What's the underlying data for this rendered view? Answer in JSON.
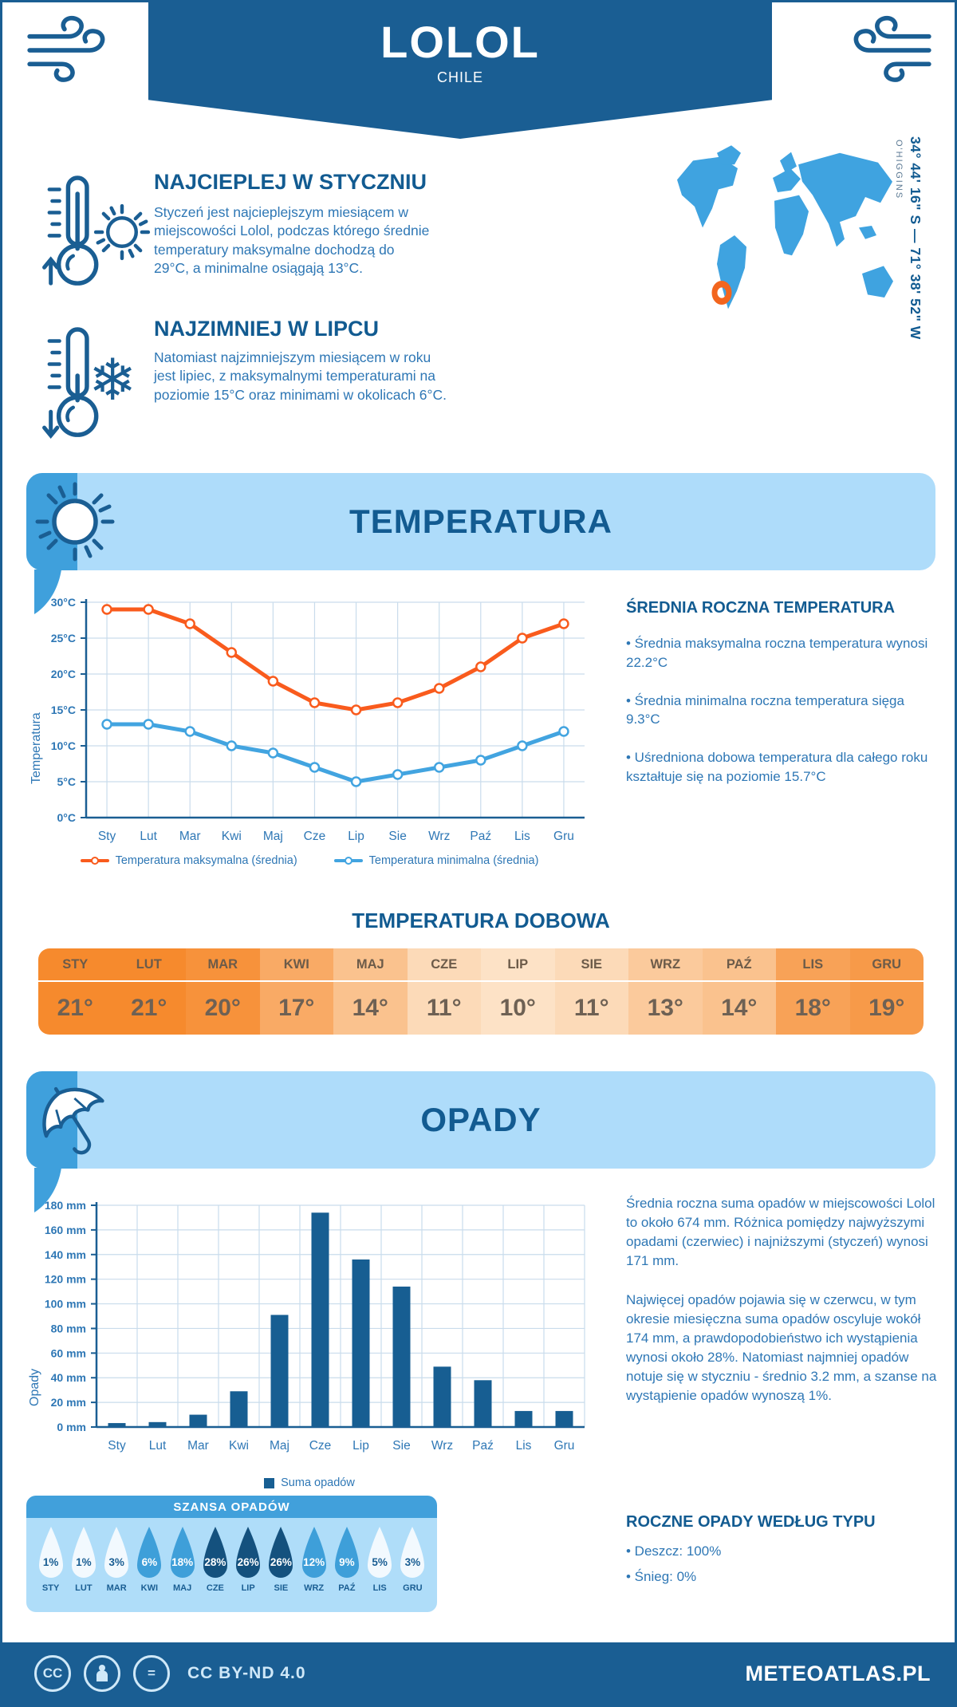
{
  "header": {
    "title": "LOLOL",
    "country": "CHILE"
  },
  "location": {
    "coordinates": "34° 44' 16\" S — 71° 38' 52\" W",
    "region": "O'HIGGINS"
  },
  "warm": {
    "heading": "NAJCIEPLEJ W STYCZNIU",
    "text": "Styczeń jest najcieplejszym miesiącem w miejscowości Lolol, podczas którego średnie temperatury maksymalne dochodzą do 29°C, a minimalne osiągają 13°C."
  },
  "cold": {
    "heading": "NAJZIMNIEJ W LIPCU",
    "text": "Natomiast najzimniejszym miesiącem w roku jest lipiec, z maksymalnymi temperaturami na poziomie 15°C oraz minimami w okolicach 6°C."
  },
  "temperature_section": {
    "title": "TEMPERATURA",
    "right_panel": {
      "heading": "ŚREDNIA ROCZNA TEMPERATURA",
      "bullets": [
        "• Średnia maksymalna roczna temperatura wynosi 22.2°C",
        "• Średnia minimalna roczna temperatura sięga 9.3°C",
        "• Uśredniona dobowa temperatura dla całego roku kształtuje się na poziomie 15.7°C"
      ]
    },
    "daily": {
      "title": "TEMPERATURA DOBOWA",
      "months": [
        "STY",
        "LUT",
        "MAR",
        "KWI",
        "MAJ",
        "CZE",
        "LIP",
        "SIE",
        "WRZ",
        "PAŹ",
        "LIS",
        "GRU"
      ],
      "values": [
        "21°",
        "21°",
        "20°",
        "17°",
        "14°",
        "11°",
        "10°",
        "11°",
        "13°",
        "14°",
        "18°",
        "19°"
      ],
      "colors": [
        "#F68A2D",
        "#F68A2D",
        "#F7923B",
        "#F9AA65",
        "#FAC28E",
        "#FCDAB8",
        "#FDE2C6",
        "#FCDAB8",
        "#FBCA9C",
        "#FAC28E",
        "#F8A257",
        "#F79A49"
      ]
    }
  },
  "precip_section": {
    "title": "OPADY",
    "paragraphs": [
      "Średnia roczna suma opadów w miejscowości Lolol to około 674 mm. Różnica pomiędzy najwyższymi opadami (czerwiec) i najniższymi (styczeń) wynosi 171 mm.",
      "Najwięcej opadów pojawia się w czerwcu, w tym okresie miesięczna suma opadów oscyluje wokół 174 mm, a prawdopodobieństwo ich wystąpienia wynosi około 28%. Natomiast najmniej opadów notuje się w styczniu - średnio 3.2 mm, a szanse na wystąpienie opadów wynoszą 1%."
    ],
    "type_panel": {
      "heading": "ROCZNE OPADY WEDŁUG TYPU",
      "bullets": [
        "• Deszcz: 100%",
        "• Śnieg: 0%"
      ]
    },
    "chance": {
      "title": "SZANSA OPADÓW",
      "months": [
        "STY",
        "LUT",
        "MAR",
        "KWI",
        "MAJ",
        "CZE",
        "LIP",
        "SIE",
        "WRZ",
        "PAŹ",
        "LIS",
        "GRU"
      ],
      "values": [
        "1%",
        "1%",
        "3%",
        "6%",
        "18%",
        "28%",
        "26%",
        "26%",
        "12%",
        "9%",
        "5%",
        "3%"
      ],
      "levels": [
        "light",
        "light",
        "light",
        "mid",
        "mid",
        "dark",
        "dark",
        "dark",
        "mid",
        "mid",
        "light",
        "light"
      ],
      "level_colors": {
        "light": "#F2F9FE",
        "mid": "#3E9FD9",
        "dark": "#14517E"
      },
      "level_text_colors": {
        "light": "#1A5E93",
        "mid": "#FFFFFF",
        "dark": "#FFFFFF"
      }
    }
  },
  "footer": {
    "license": "CC BY-ND 4.0",
    "brand": "METEOATLAS.PL"
  },
  "colors": {
    "primary_dark_blue": "#1A5E93",
    "banner_light_blue": "#AEDCFA",
    "banner_accent_blue": "#3FA0DC",
    "map_blue": "#3FA3E0",
    "marker_orange": "#F2651E",
    "heading_blue": "#125B91",
    "body_text_blue": "#2E77B5"
  },
  "chart_data": [
    {
      "type": "line",
      "categories": [
        "Sty",
        "Lut",
        "Mar",
        "Kwi",
        "Maj",
        "Cze",
        "Lip",
        "Sie",
        "Wrz",
        "Paź",
        "Lis",
        "Gru"
      ],
      "series": [
        {
          "name": "Temperatura maksymalna (średnia)",
          "color": "#F95B1D",
          "values": [
            29,
            29,
            27,
            23,
            19,
            16,
            15,
            16,
            18,
            21,
            25,
            27
          ]
        },
        {
          "name": "Temperatura minimalna (średnia)",
          "color": "#42A4E0",
          "values": [
            13,
            13,
            12,
            10,
            9,
            7,
            5,
            6,
            7,
            8,
            10,
            12
          ]
        }
      ],
      "ylabel": "Temperatura",
      "xlabel": "",
      "ylim": [
        0,
        30
      ],
      "ytick_step": 5,
      "ytick_suffix": "°C",
      "grid": true,
      "legend_position": "bottom"
    },
    {
      "type": "bar",
      "categories": [
        "Sty",
        "Lut",
        "Mar",
        "Kwi",
        "Maj",
        "Cze",
        "Lip",
        "Sie",
        "Wrz",
        "Paź",
        "Lis",
        "Gru"
      ],
      "values": [
        3.2,
        4,
        10,
        29,
        91,
        174,
        136,
        114,
        49,
        38,
        13,
        13
      ],
      "series_name": "Suma opadów",
      "color": "#175E92",
      "ylabel": "Opady",
      "xlabel": "",
      "ylim": [
        0,
        180
      ],
      "ytick_step": 20,
      "ytick_suffix": " mm",
      "grid": true,
      "legend_position": "bottom"
    }
  ]
}
